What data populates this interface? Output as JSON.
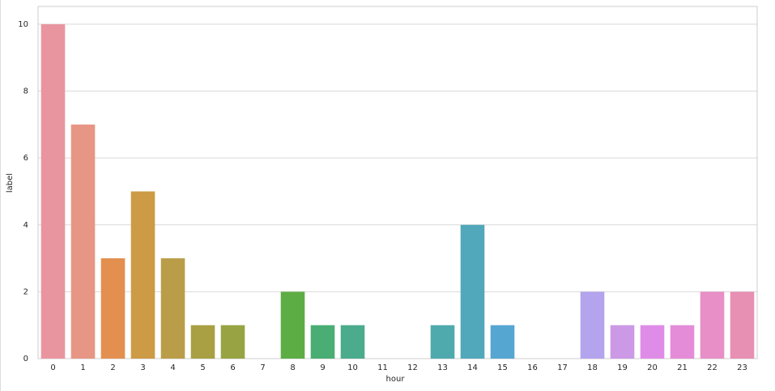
{
  "chart_data": {
    "type": "bar",
    "x_label": "hour",
    "y_label": "label",
    "categories": [
      "0",
      "1",
      "2",
      "3",
      "4",
      "5",
      "6",
      "7",
      "8",
      "9",
      "10",
      "11",
      "12",
      "13",
      "14",
      "15",
      "16",
      "17",
      "18",
      "19",
      "20",
      "21",
      "22",
      "23"
    ],
    "values": [
      10,
      7,
      3,
      5,
      3,
      1,
      1,
      0,
      2,
      1,
      1,
      0,
      0,
      1,
      4,
      1,
      0,
      0,
      2,
      1,
      1,
      1,
      2,
      2
    ],
    "colors": [
      "#e9959f",
      "#e79685",
      "#e38f4f",
      "#cd9a46",
      "#b99d49",
      "#a8a043",
      "#98a343",
      "#7fa843",
      "#5dad45",
      "#4aad73",
      "#4bab8d",
      "#4daa9c",
      "#4eaaa5",
      "#4faaad",
      "#51a8ba",
      "#56a6d2",
      "#7ba2e0",
      "#9b9de7",
      "#b4a3ed",
      "#cc99e6",
      "#df8ce8",
      "#e48cd8",
      "#e78fc6",
      "#e88fb4"
    ],
    "ylim": [
      0,
      10.53
    ],
    "yticks": [
      0,
      2,
      4,
      6,
      8,
      10
    ],
    "grid": true
  }
}
